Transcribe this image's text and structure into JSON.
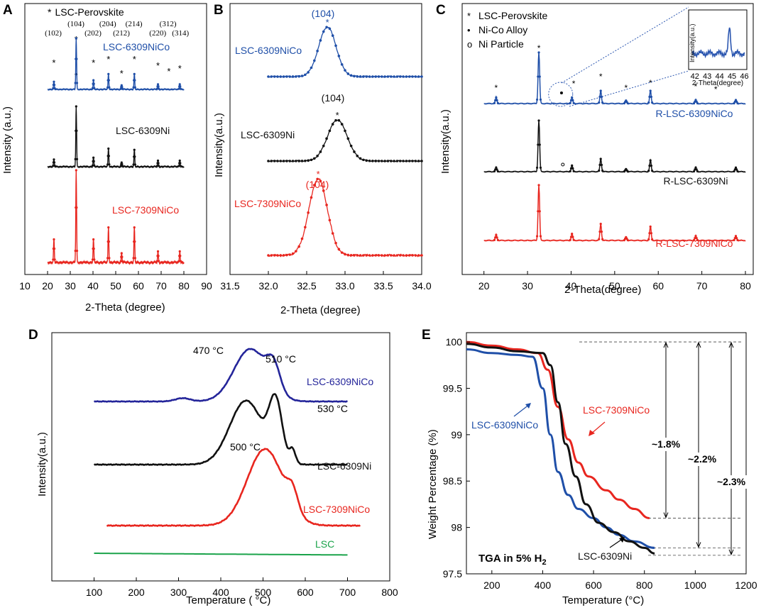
{
  "colors": {
    "blue": "#1f4fa8",
    "black": "#111111",
    "red": "#e8261f",
    "navy": "#24259a",
    "green": "#1aa34a",
    "inset": "#2c57b0"
  },
  "chart_data": [
    {
      "panel": "A",
      "type": "line",
      "title": "",
      "xlabel": "2-Theta (degree)",
      "ylabel": "Intensity (a.u.)",
      "xlim": [
        10,
        90
      ],
      "xticks": [
        10,
        20,
        30,
        40,
        50,
        60,
        70,
        80,
        90
      ],
      "legend": {
        "marker": "*",
        "label": "LSC-Perovskite"
      },
      "miller_labels": [
        {
          "text": "(102)",
          "x": 22.5,
          "row": 2
        },
        {
          "text": "(104)",
          "x": 32.5,
          "row": 1
        },
        {
          "text": "(202)",
          "x": 40.0,
          "row": 2
        },
        {
          "text": "(204)",
          "x": 46.5,
          "row": 1
        },
        {
          "text": "(212)",
          "x": 52.5,
          "row": 2
        },
        {
          "text": "(214)",
          "x": 58.0,
          "row": 1
        },
        {
          "text": "(220)",
          "x": 68.5,
          "row": 2
        },
        {
          "text": "(312)",
          "x": 73.0,
          "row": 1
        },
        {
          "text": "(314)",
          "x": 78.5,
          "row": 2
        }
      ],
      "star_positions": [
        22.8,
        32.6,
        40.2,
        46.8,
        52.6,
        58.2,
        68.6,
        73.4,
        78.2
      ],
      "series": [
        {
          "name": "LSC-6309NiCo",
          "color": "blue",
          "peaks": [
            {
              "x": 22.8,
              "h": 0.15
            },
            {
              "x": 32.6,
              "h": 1.0
            },
            {
              "x": 40.2,
              "h": 0.18
            },
            {
              "x": 46.8,
              "h": 0.3
            },
            {
              "x": 52.6,
              "h": 0.08
            },
            {
              "x": 58.2,
              "h": 0.3
            },
            {
              "x": 68.6,
              "h": 0.1
            },
            {
              "x": 78.2,
              "h": 0.1
            }
          ]
        },
        {
          "name": "LSC-6309Ni",
          "color": "black",
          "peaks": [
            {
              "x": 22.8,
              "h": 0.12
            },
            {
              "x": 32.6,
              "h": 1.0
            },
            {
              "x": 40.2,
              "h": 0.15
            },
            {
              "x": 46.8,
              "h": 0.3
            },
            {
              "x": 52.6,
              "h": 0.07
            },
            {
              "x": 58.2,
              "h": 0.28
            },
            {
              "x": 68.6,
              "h": 0.1
            },
            {
              "x": 78.2,
              "h": 0.1
            }
          ]
        },
        {
          "name": "LSC-7309NiCo",
          "color": "red",
          "peaks": [
            {
              "x": 22.8,
              "h": 0.25
            },
            {
              "x": 32.6,
              "h": 1.0
            },
            {
              "x": 40.2,
              "h": 0.25
            },
            {
              "x": 46.8,
              "h": 0.38
            },
            {
              "x": 52.6,
              "h": 0.1
            },
            {
              "x": 58.2,
              "h": 0.38
            },
            {
              "x": 68.6,
              "h": 0.12
            },
            {
              "x": 78.2,
              "h": 0.12
            }
          ]
        }
      ]
    },
    {
      "panel": "B",
      "type": "line",
      "title": "",
      "xlabel": "2-Theta (degree)",
      "ylabel": "Intensity(a.u.)",
      "xlim": [
        31.5,
        34.0
      ],
      "xticks": [
        31.5,
        32.0,
        32.5,
        33.0,
        33.5,
        34.0
      ],
      "series": [
        {
          "name": "LSC-6309NiCo",
          "color": "blue",
          "peak_label": "(104)",
          "x_start": 32.0,
          "center": 32.77,
          "width": 0.16,
          "x": [
            32.0,
            32.2,
            32.4,
            32.6,
            32.7,
            32.77,
            32.85,
            33.0,
            33.2,
            33.5,
            34.0
          ]
        },
        {
          "name": "LSC-6309Ni",
          "color": "black",
          "peak_label": "(104)",
          "x_start": 32.0,
          "center": 32.9,
          "width": 0.18,
          "x": [
            32.0,
            32.3,
            32.6,
            32.8,
            32.9,
            33.0,
            33.2,
            33.5,
            34.0
          ]
        },
        {
          "name": "LSC-7309NiCo",
          "color": "red",
          "peak_label": "(104)",
          "x_start": 32.0,
          "center": 32.65,
          "width": 0.17,
          "x": [
            32.0,
            32.3,
            32.5,
            32.6,
            32.65,
            32.75,
            33.0,
            33.3,
            34.0
          ]
        }
      ]
    },
    {
      "panel": "C",
      "type": "line",
      "title": "",
      "xlabel": "2-Theta(degree)",
      "ylabel": "Intensity(a.u.)",
      "xlim": [
        15,
        80
      ],
      "xticks": [
        20,
        30,
        40,
        50,
        60,
        70,
        80
      ],
      "legend": [
        {
          "marker": "*",
          "label": "LSC-Perovskite"
        },
        {
          "marker": "•",
          "label": "Ni-Co Alloy"
        },
        {
          "marker": "o",
          "label": "Ni Particle"
        }
      ],
      "series": [
        {
          "name": "R-LSC-6309NiCo",
          "color": "blue",
          "peaks": [
            {
              "x": 22.8,
              "h": 0.12
            },
            {
              "x": 32.6,
              "h": 1.0
            },
            {
              "x": 40.2,
              "h": 0.12
            },
            {
              "x": 46.8,
              "h": 0.25
            },
            {
              "x": 52.6,
              "h": 0.06
            },
            {
              "x": 58.2,
              "h": 0.25
            },
            {
              "x": 68.6,
              "h": 0.07
            },
            {
              "x": 77.8,
              "h": 0.07
            }
          ]
        },
        {
          "name": "R-LSC-6309Ni",
          "color": "black",
          "peaks": [
            {
              "x": 22.8,
              "h": 0.08
            },
            {
              "x": 32.6,
              "h": 1.0
            },
            {
              "x": 40.2,
              "h": 0.12
            },
            {
              "x": 46.8,
              "h": 0.25
            },
            {
              "x": 52.6,
              "h": 0.05
            },
            {
              "x": 58.2,
              "h": 0.22
            },
            {
              "x": 68.6,
              "h": 0.08
            },
            {
              "x": 77.8,
              "h": 0.08
            }
          ]
        },
        {
          "name": "R-LSC-7309NiCo",
          "color": "red",
          "peaks": [
            {
              "x": 22.8,
              "h": 0.1
            },
            {
              "x": 32.6,
              "h": 1.0
            },
            {
              "x": 40.2,
              "h": 0.12
            },
            {
              "x": 46.8,
              "h": 0.3
            },
            {
              "x": 52.6,
              "h": 0.06
            },
            {
              "x": 58.2,
              "h": 0.25
            },
            {
              "x": 68.6,
              "h": 0.08
            },
            {
              "x": 77.8,
              "h": 0.08
            }
          ]
        }
      ],
      "inset": {
        "xlabel": "2-Theta(degree)",
        "ylabel": "Intensity(a.u.)",
        "xlim": [
          41.5,
          46.2
        ],
        "xticks": [
          42,
          43,
          44,
          45,
          46
        ],
        "peak_x": 44.8
      }
    },
    {
      "panel": "D",
      "type": "line",
      "title": "",
      "xlabel": "Temperature (   °C)",
      "ylabel": "Intensity(a.u.)",
      "xlim": [
        0,
        800
      ],
      "xticks": [
        100,
        200,
        300,
        400,
        500,
        600,
        700,
        800
      ],
      "annotations": [
        {
          "text": "470 °C",
          "x": 470,
          "series": "LSC-6309NiCo"
        },
        {
          "text": "510 °C",
          "x": 510,
          "series": "LSC-6309NiCo"
        },
        {
          "text": "530 °C",
          "x": 530,
          "series": "LSC-6309Ni"
        },
        {
          "text": "500 °C",
          "x": 500,
          "series": "LSC-7309NiCo"
        }
      ],
      "series": [
        {
          "name": "LSC-6309NiCo",
          "color": "navy",
          "x_range": [
            100,
            700
          ],
          "peaks": [
            {
              "x": 470,
              "h": 0.95,
              "w": 55
            },
            {
              "x": 525,
              "h": 0.45,
              "w": 22
            },
            {
              "x": 310,
              "h": 0.06,
              "w": 25
            }
          ]
        },
        {
          "name": "LSC-6309Ni",
          "color": "black",
          "x_range": [
            100,
            700
          ],
          "peaks": [
            {
              "x": 460,
              "h": 0.95,
              "w": 55
            },
            {
              "x": 530,
              "h": 0.85,
              "w": 22
            },
            {
              "x": 570,
              "h": 0.2,
              "w": 10
            }
          ]
        },
        {
          "name": "LSC-7309NiCo",
          "color": "red",
          "x_range": [
            130,
            730
          ],
          "peaks": [
            {
              "x": 505,
              "h": 1.0,
              "w": 60
            },
            {
              "x": 570,
              "h": 0.25,
              "w": 18
            }
          ]
        },
        {
          "name": "LSC",
          "color": "green",
          "x_range": [
            100,
            700
          ],
          "peaks": []
        }
      ]
    },
    {
      "panel": "E",
      "type": "line",
      "title": "",
      "xlabel": "Temperature (°C)",
      "ylabel": "Weight Percentage (%)",
      "xlim": [
        100,
        1200
      ],
      "ylim": [
        97.5,
        100.1
      ],
      "xticks": [
        200,
        400,
        600,
        800,
        1000,
        1200
      ],
      "yticks": [
        97.5,
        98,
        98.5,
        99,
        99.5,
        100
      ],
      "annotation_text": "TGA in 5% H",
      "annotation_sub": "2",
      "mass_losses": [
        "~1.8%",
        "~2.2%",
        "~2.3%"
      ],
      "reference_levels": [
        100,
        98.1,
        97.78,
        97.7
      ],
      "series": [
        {
          "name": "LSC-7309NiCo",
          "color": "red",
          "x": [
            100,
            200,
            300,
            380,
            420,
            460,
            500,
            540,
            580,
            650,
            700,
            760,
            820
          ],
          "y": [
            100,
            99.96,
            99.92,
            99.88,
            99.7,
            99.3,
            98.95,
            98.7,
            98.55,
            98.4,
            98.3,
            98.2,
            98.1
          ]
        },
        {
          "name": "LSC-6309NiCo",
          "color": "blue",
          "x": [
            100,
            200,
            300,
            360,
            400,
            430,
            460,
            500,
            540,
            600,
            650,
            700,
            760,
            840
          ],
          "y": [
            99.92,
            99.88,
            99.86,
            99.84,
            99.5,
            99.0,
            98.6,
            98.35,
            98.2,
            98.1,
            98.0,
            97.92,
            97.85,
            97.78
          ]
        },
        {
          "name": "LSC-6309Ni",
          "color": "black",
          "x": [
            100,
            200,
            300,
            400,
            430,
            460,
            490,
            530,
            570,
            620,
            680,
            740,
            800,
            840
          ],
          "y": [
            99.98,
            99.94,
            99.9,
            99.88,
            99.75,
            99.35,
            98.9,
            98.55,
            98.25,
            98.05,
            97.95,
            97.85,
            97.78,
            97.72
          ]
        }
      ]
    }
  ]
}
